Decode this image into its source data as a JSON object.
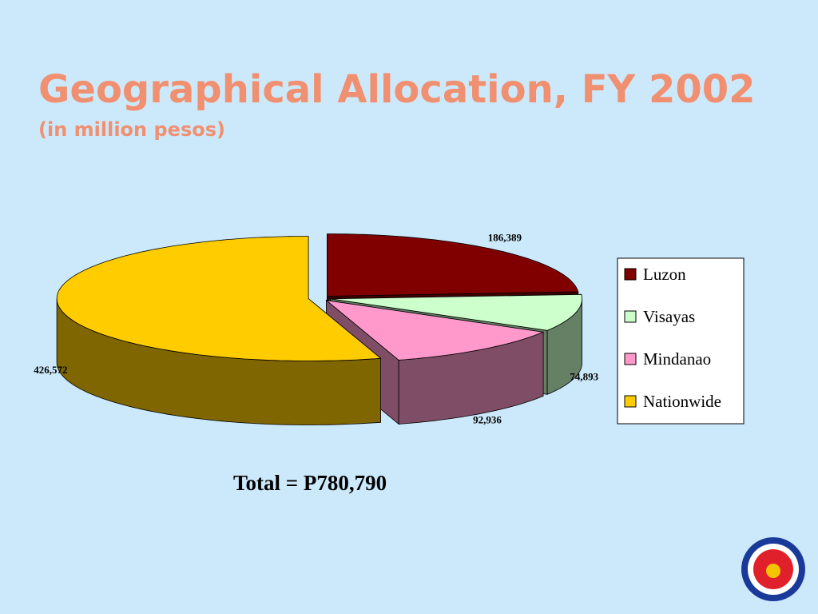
{
  "chart_data": {
    "type": "pie",
    "title": "Geographical Allocation, FY 2002",
    "subtitle": "(in million pesos)",
    "categories": [
      "Luzon",
      "Visayas",
      "Mindanao",
      "Nationwide"
    ],
    "values": [
      186389,
      74893,
      92936,
      426572
    ],
    "value_labels": [
      "186,389",
      "74,893",
      "92,936",
      "426,572"
    ],
    "colors": [
      "#800000",
      "#ccffcc",
      "#ff99cc",
      "#ffcc00"
    ],
    "legend": "right",
    "annotation": "Total = P780,790"
  }
}
